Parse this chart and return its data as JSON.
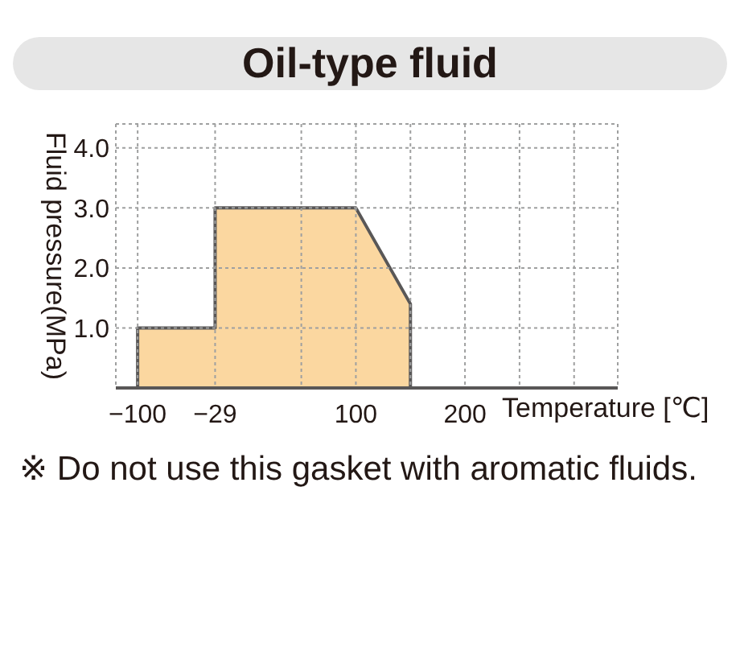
{
  "chart_data": {
    "type": "area",
    "title": "Oil-type fluid",
    "xlabel": "Temperature [℃]",
    "ylabel": "Fluid pressure(MPa)",
    "x": [
      -100,
      -100,
      -29,
      -29,
      100,
      150,
      150
    ],
    "values": [
      0,
      1.0,
      1.0,
      3.0,
      3.0,
      1.4,
      0
    ],
    "color": "#fbd7a0",
    "xlim": [
      -120,
      340
    ],
    "xticks": [
      {
        "value": -100,
        "label": "−100"
      },
      {
        "value": -29,
        "label": "−29"
      },
      {
        "value": 50,
        "label": null
      },
      100,
      {
        "value": 150,
        "label": null
      },
      200,
      {
        "value": 250,
        "label": null
      },
      {
        "value": 300,
        "label": null
      }
    ],
    "ylim": [
      0,
      4.4
    ],
    "yticks": [
      {
        "value": 1,
        "label": "1.0"
      },
      {
        "value": 2,
        "label": "2.0"
      },
      {
        "value": 3,
        "label": "3.0"
      },
      {
        "value": 4,
        "label": "4.0"
      }
    ],
    "grid": true,
    "annotations": [
      "※ Do not use this gasket with aromatic fluids."
    ]
  }
}
